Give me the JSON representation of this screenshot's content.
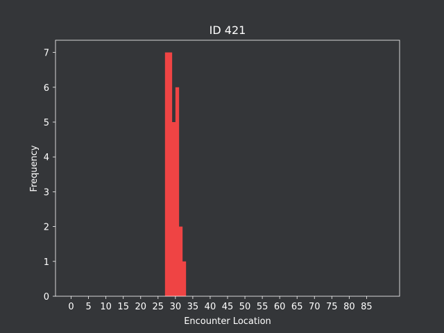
{
  "chart_data": {
    "type": "bar",
    "title": "ID 421",
    "xlabel": "Encounter Location",
    "ylabel": "Frequency",
    "bar_color": "#ef4444",
    "background_color": "#343639",
    "axis_color": "#ffffff",
    "xlim": [
      -4.5,
      94.5
    ],
    "ylim": [
      0,
      7.35
    ],
    "xticks": [
      0,
      5,
      10,
      15,
      20,
      25,
      30,
      35,
      40,
      45,
      50,
      55,
      60,
      65,
      70,
      75,
      80,
      85
    ],
    "yticks": [
      0,
      1,
      2,
      3,
      4,
      5,
      6,
      7
    ],
    "grid": false,
    "bins": [
      {
        "x0": 27,
        "x1": 28,
        "value": 7
      },
      {
        "x0": 28,
        "x1": 29,
        "value": 7
      },
      {
        "x0": 29,
        "x1": 30,
        "value": 5
      },
      {
        "x0": 30,
        "x1": 31,
        "value": 6
      },
      {
        "x0": 31,
        "x1": 32,
        "value": 2
      },
      {
        "x0": 32,
        "x1": 33,
        "value": 1
      }
    ]
  }
}
